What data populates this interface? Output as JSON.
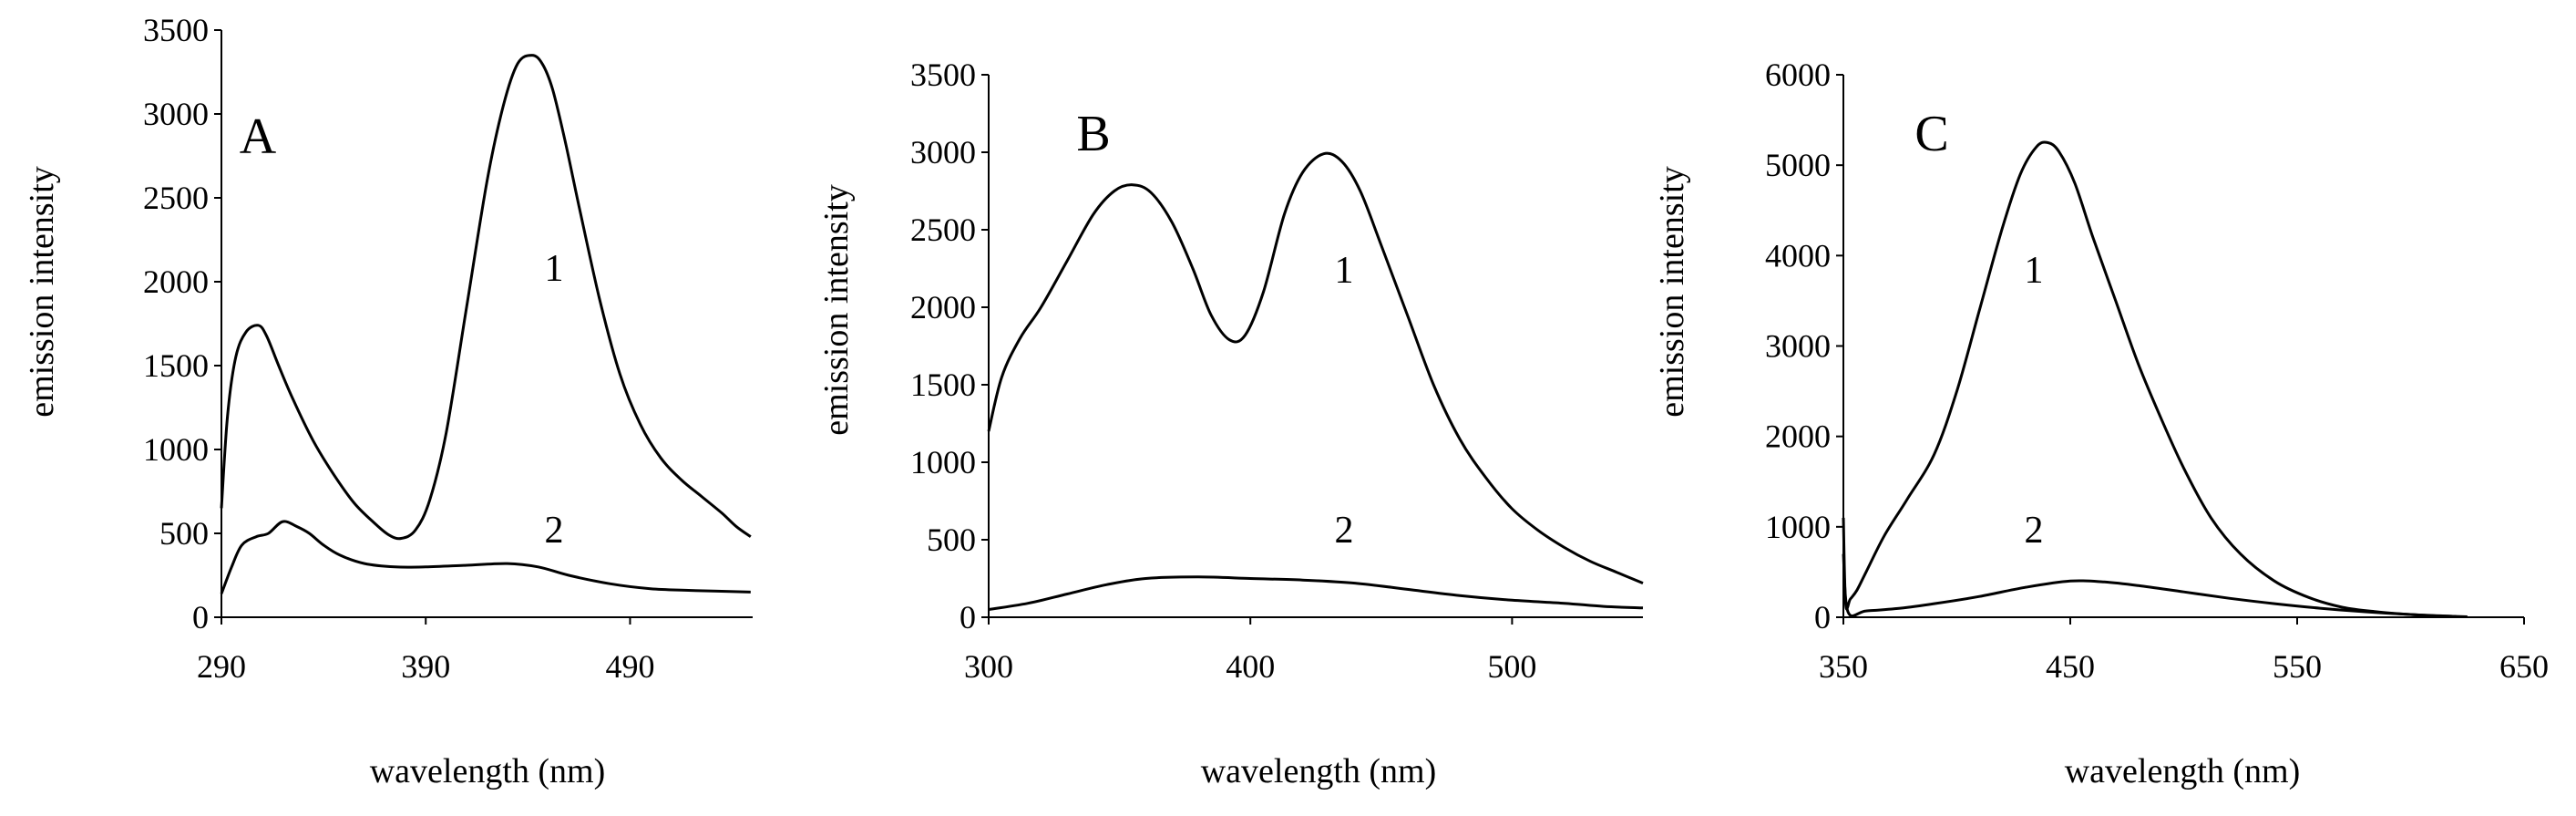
{
  "chart_data": [
    {
      "type": "line",
      "panel": "A",
      "xlabel": "wavelength (nm)",
      "ylabel": "emission intensity",
      "xlim": [
        290,
        550
      ],
      "ylim": [
        0,
        3500
      ],
      "xticks": [
        290,
        390,
        490
      ],
      "yticks": [
        0,
        500,
        1000,
        1500,
        2000,
        2500,
        3000,
        3500
      ],
      "series": [
        {
          "name": "1",
          "x": [
            290,
            293,
            297,
            302,
            308,
            312,
            318,
            325,
            335,
            345,
            355,
            365,
            372,
            378,
            385,
            392,
            400,
            410,
            420,
            428,
            435,
            442,
            447,
            452,
            458,
            465,
            475,
            485,
            495,
            505,
            515,
            525,
            535,
            542,
            549
          ],
          "values": [
            650,
            1200,
            1550,
            1700,
            1740,
            1680,
            1500,
            1300,
            1050,
            850,
            680,
            560,
            490,
            470,
            520,
            700,
            1100,
            1850,
            2600,
            3050,
            3300,
            3350,
            3300,
            3150,
            2850,
            2450,
            1900,
            1450,
            1150,
            950,
            820,
            720,
            620,
            540,
            480
          ]
        },
        {
          "name": "2",
          "x": [
            290,
            295,
            300,
            307,
            313,
            320,
            327,
            333,
            340,
            348,
            360,
            375,
            390,
            410,
            430,
            445,
            460,
            480,
            500,
            520,
            549
          ],
          "values": [
            140,
            300,
            430,
            480,
            500,
            570,
            540,
            500,
            430,
            370,
            320,
            300,
            300,
            310,
            320,
            300,
            250,
            200,
            170,
            160,
            150
          ]
        }
      ],
      "series_labels": [
        "1",
        "2"
      ]
    },
    {
      "type": "line",
      "panel": "B",
      "xlabel": "wavelength (nm)",
      "ylabel": "emission intensity",
      "xlim": [
        300,
        550
      ],
      "ylim": [
        0,
        3500
      ],
      "xticks": [
        300,
        400,
        500
      ],
      "yticks": [
        0,
        500,
        1000,
        1500,
        2000,
        2500,
        3000,
        3500
      ],
      "series": [
        {
          "name": "1",
          "x": [
            300,
            305,
            312,
            320,
            330,
            340,
            348,
            355,
            362,
            370,
            378,
            385,
            392,
            398,
            405,
            413,
            420,
            428,
            435,
            442,
            450,
            460,
            470,
            480,
            490,
            500,
            510,
            520,
            530,
            540,
            550
          ],
          "values": [
            1200,
            1550,
            1800,
            2000,
            2300,
            2600,
            2750,
            2790,
            2740,
            2550,
            2250,
            1950,
            1790,
            1820,
            2100,
            2600,
            2870,
            2990,
            2940,
            2750,
            2400,
            1950,
            1500,
            1150,
            900,
            700,
            560,
            450,
            360,
            290,
            220
          ]
        },
        {
          "name": "2",
          "x": [
            300,
            315,
            330,
            345,
            360,
            380,
            400,
            420,
            440,
            460,
            480,
            500,
            520,
            535,
            550
          ],
          "values": [
            50,
            90,
            150,
            210,
            250,
            260,
            250,
            240,
            220,
            180,
            140,
            110,
            90,
            70,
            60
          ]
        }
      ],
      "series_labels": [
        "1",
        "2"
      ]
    },
    {
      "type": "line",
      "panel": "C",
      "xlabel": "wavelength (nm)",
      "ylabel": "emission intensity",
      "xlim": [
        350,
        650
      ],
      "ylim": [
        0,
        6000
      ],
      "xticks": [
        350,
        450,
        550,
        650
      ],
      "yticks": [
        0,
        1000,
        2000,
        3000,
        4000,
        5000,
        6000
      ],
      "series": [
        {
          "name": "1",
          "x": [
            350,
            351,
            353,
            356,
            360,
            368,
            378,
            390,
            400,
            410,
            420,
            428,
            435,
            440,
            445,
            452,
            460,
            470,
            480,
            490,
            500,
            512,
            525,
            540,
            555,
            570,
            585,
            600,
            612,
            625
          ],
          "values": [
            1100,
            150,
            200,
            300,
            500,
            900,
            1300,
            1800,
            2500,
            3400,
            4300,
            4900,
            5200,
            5250,
            5150,
            4800,
            4200,
            3500,
            2800,
            2200,
            1650,
            1100,
            700,
            400,
            220,
            110,
            60,
            30,
            15,
            5
          ]
        },
        {
          "name": "2",
          "x": [
            350,
            352,
            360,
            375,
            390,
            410,
            430,
            450,
            465,
            480,
            500,
            520,
            540,
            560,
            580,
            600,
            620
          ],
          "values": [
            700,
            60,
            70,
            100,
            150,
            230,
            330,
            400,
            390,
            350,
            280,
            210,
            150,
            100,
            60,
            30,
            10
          ]
        }
      ],
      "series_labels": [
        "1",
        "2"
      ]
    }
  ]
}
